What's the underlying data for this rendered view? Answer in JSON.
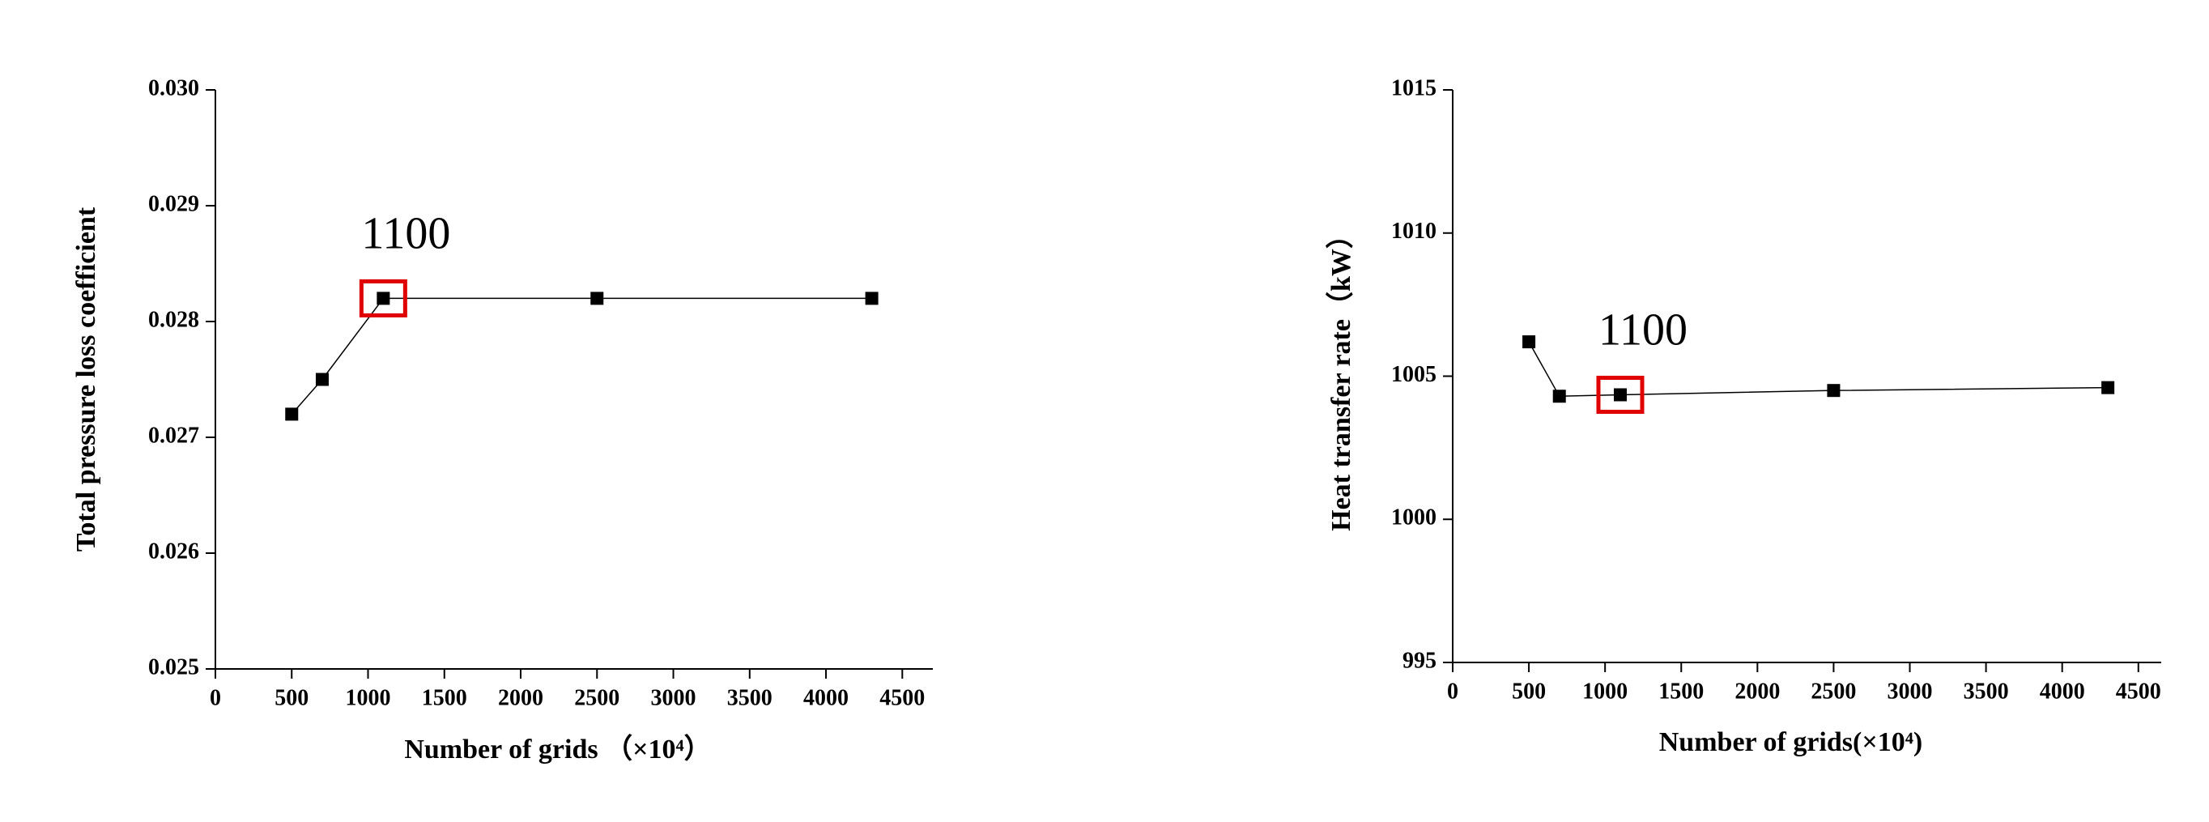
{
  "chart_data": [
    {
      "type": "line",
      "y_label": "Total pressure loss coefficient",
      "x_label": "Number of grids （×10⁴）",
      "x": [
        500,
        700,
        1100,
        2500,
        4300
      ],
      "series": [
        {
          "color": "#000000",
          "values": [
            0.0272,
            0.0275,
            0.0282,
            0.0282,
            0.0282
          ]
        }
      ],
      "xlim": [
        0,
        4700
      ],
      "xticks": [
        0,
        500,
        1000,
        1500,
        2000,
        2500,
        3000,
        3500,
        4000,
        4500
      ],
      "ylim": [
        0.025,
        0.03
      ],
      "yticks": [
        0.025,
        0.026,
        0.027,
        0.028,
        0.029,
        {
          "value": 0.03,
          "label": "0.030"
        }
      ],
      "annotation": {
        "text": "1100",
        "x": 1100,
        "color": "#e00000"
      }
    },
    {
      "type": "line",
      "y_label": "Heat transfer rate（kW）",
      "x_label": "Number of grids(×10⁴)",
      "x": [
        500,
        700,
        1100,
        2500,
        4300
      ],
      "series": [
        {
          "color": "#000000",
          "values": [
            1006.2,
            1004.3,
            1004.35,
            1004.5,
            1004.6
          ]
        }
      ],
      "xlim": [
        0,
        4650
      ],
      "xticks": [
        0,
        500,
        1000,
        1500,
        2000,
        2500,
        3000,
        3500,
        4000,
        4500
      ],
      "ylim": [
        995,
        1015
      ],
      "yticks": [
        995,
        1000,
        1005,
        1010,
        1015
      ],
      "annotation": {
        "text": "1100",
        "x": 1100,
        "color": "#e00000"
      }
    }
  ]
}
